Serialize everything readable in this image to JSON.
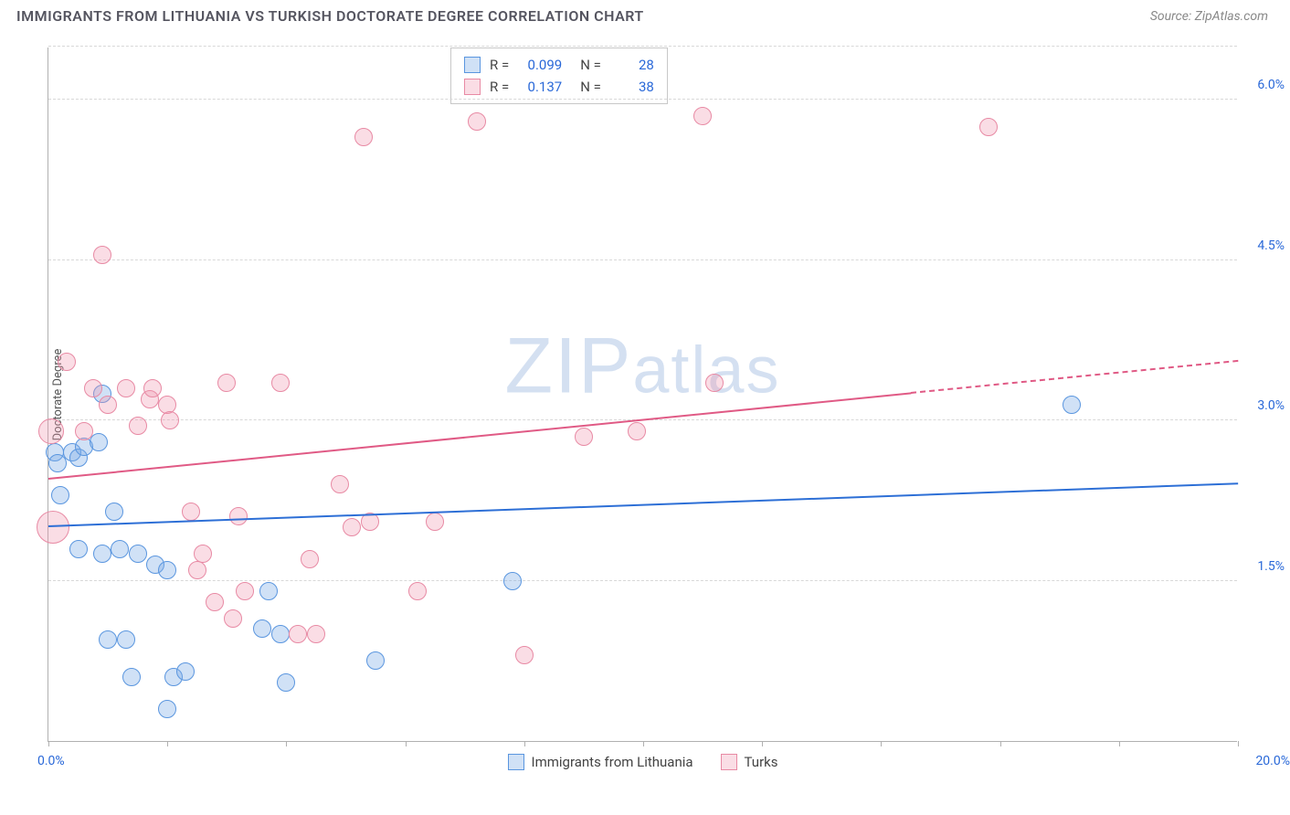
{
  "title": "IMMIGRANTS FROM LITHUANIA VS TURKISH DOCTORATE DEGREE CORRELATION CHART",
  "source": "Source: ZipAtlas.com",
  "watermark": "ZIPatlas",
  "chart": {
    "type": "scatter",
    "yaxis_title": "Doctorate Degree",
    "xlim": [
      0,
      20
    ],
    "ylim": [
      0,
      6.5
    ],
    "xtick_positions": [
      0,
      2,
      4,
      6,
      8,
      10,
      12,
      14,
      16,
      18,
      20
    ],
    "ytick_labels": [
      "1.5%",
      "3.0%",
      "4.5%",
      "6.0%"
    ],
    "ytick_values": [
      1.5,
      3.0,
      4.5,
      6.0
    ],
    "xlabel_min": "0.0%",
    "xlabel_max": "20.0%",
    "background_color": "#ffffff",
    "grid_color": "#d8d8d8",
    "axis_color": "#b0b0b0",
    "label_color": "#2968d8",
    "title_color": "#555560",
    "title_fontsize": 16,
    "label_fontsize": 14,
    "marker_radius": 10,
    "series": [
      {
        "name": "Immigrants from Lithuania",
        "stroke": "#5a96df",
        "fill": "rgba(120,170,230,0.35)",
        "trend_color": "#2d6fd6",
        "r": "0.099",
        "n": "28",
        "trend": {
          "x1": 0,
          "y1": 2.0,
          "x2": 20,
          "y2": 2.4
        },
        "points": [
          {
            "x": 0.1,
            "y": 2.7,
            "r": 10
          },
          {
            "x": 0.15,
            "y": 2.6,
            "r": 10
          },
          {
            "x": 0.2,
            "y": 2.3,
            "r": 10
          },
          {
            "x": 0.4,
            "y": 2.7,
            "r": 10
          },
          {
            "x": 0.5,
            "y": 2.65,
            "r": 10
          },
          {
            "x": 0.6,
            "y": 2.75,
            "r": 10
          },
          {
            "x": 0.85,
            "y": 2.8,
            "r": 10
          },
          {
            "x": 0.9,
            "y": 3.25,
            "r": 10
          },
          {
            "x": 1.1,
            "y": 2.15,
            "r": 10
          },
          {
            "x": 0.5,
            "y": 1.8,
            "r": 10
          },
          {
            "x": 0.9,
            "y": 1.75,
            "r": 10
          },
          {
            "x": 1.2,
            "y": 1.8,
            "r": 10
          },
          {
            "x": 1.5,
            "y": 1.75,
            "r": 10
          },
          {
            "x": 1.8,
            "y": 1.65,
            "r": 10
          },
          {
            "x": 1.3,
            "y": 0.95,
            "r": 10
          },
          {
            "x": 1.4,
            "y": 0.6,
            "r": 10
          },
          {
            "x": 2.0,
            "y": 1.6,
            "r": 10
          },
          {
            "x": 2.1,
            "y": 0.6,
            "r": 10
          },
          {
            "x": 2.3,
            "y": 0.65,
            "r": 10
          },
          {
            "x": 2.0,
            "y": 0.3,
            "r": 10
          },
          {
            "x": 3.7,
            "y": 1.4,
            "r": 10
          },
          {
            "x": 3.6,
            "y": 1.05,
            "r": 10
          },
          {
            "x": 3.9,
            "y": 1.0,
            "r": 10
          },
          {
            "x": 4.0,
            "y": 0.55,
            "r": 10
          },
          {
            "x": 5.5,
            "y": 0.75,
            "r": 10
          },
          {
            "x": 7.8,
            "y": 1.5,
            "r": 10
          },
          {
            "x": 17.2,
            "y": 3.15,
            "r": 10
          },
          {
            "x": 1.0,
            "y": 0.95,
            "r": 10
          }
        ]
      },
      {
        "name": "Turks",
        "stroke": "#e88aa4",
        "fill": "rgba(240,150,175,0.32)",
        "trend_color": "#e05a85",
        "r": "0.137",
        "n": "38",
        "trend": {
          "x1": 0,
          "y1": 2.45,
          "x2": 14.5,
          "y2": 3.25
        },
        "trend_dash": {
          "x1": 14.5,
          "y1": 3.25,
          "x2": 20,
          "y2": 3.55
        },
        "points": [
          {
            "x": 0.05,
            "y": 2.9,
            "r": 14
          },
          {
            "x": 0.08,
            "y": 2.0,
            "r": 18
          },
          {
            "x": 0.3,
            "y": 3.55,
            "r": 10
          },
          {
            "x": 0.75,
            "y": 3.3,
            "r": 10
          },
          {
            "x": 0.9,
            "y": 4.55,
            "r": 10
          },
          {
            "x": 1.0,
            "y": 3.15,
            "r": 10
          },
          {
            "x": 1.3,
            "y": 3.3,
            "r": 10
          },
          {
            "x": 1.5,
            "y": 2.95,
            "r": 10
          },
          {
            "x": 1.7,
            "y": 3.2,
            "r": 10
          },
          {
            "x": 1.75,
            "y": 3.3,
            "r": 10
          },
          {
            "x": 2.0,
            "y": 3.15,
            "r": 10
          },
          {
            "x": 2.4,
            "y": 2.15,
            "r": 10
          },
          {
            "x": 2.5,
            "y": 1.6,
            "r": 10
          },
          {
            "x": 2.6,
            "y": 1.75,
            "r": 10
          },
          {
            "x": 2.8,
            "y": 1.3,
            "r": 10
          },
          {
            "x": 3.0,
            "y": 3.35,
            "r": 10
          },
          {
            "x": 3.1,
            "y": 1.15,
            "r": 10
          },
          {
            "x": 3.2,
            "y": 2.1,
            "r": 10
          },
          {
            "x": 3.3,
            "y": 1.4,
            "r": 10
          },
          {
            "x": 3.9,
            "y": 3.35,
            "r": 10
          },
          {
            "x": 4.2,
            "y": 1.0,
            "r": 10
          },
          {
            "x": 4.4,
            "y": 1.7,
            "r": 10
          },
          {
            "x": 4.5,
            "y": 1.0,
            "r": 10
          },
          {
            "x": 4.9,
            "y": 2.4,
            "r": 10
          },
          {
            "x": 5.1,
            "y": 2.0,
            "r": 10
          },
          {
            "x": 5.3,
            "y": 5.65,
            "r": 10
          },
          {
            "x": 5.4,
            "y": 2.05,
            "r": 10
          },
          {
            "x": 6.2,
            "y": 1.4,
            "r": 10
          },
          {
            "x": 6.5,
            "y": 2.05,
            "r": 10
          },
          {
            "x": 7.2,
            "y": 5.8,
            "r": 10
          },
          {
            "x": 8.0,
            "y": 0.8,
            "r": 10
          },
          {
            "x": 9.0,
            "y": 2.85,
            "r": 10
          },
          {
            "x": 9.9,
            "y": 2.9,
            "r": 10
          },
          {
            "x": 11.0,
            "y": 5.85,
            "r": 10
          },
          {
            "x": 11.2,
            "y": 3.35,
            "r": 10
          },
          {
            "x": 15.8,
            "y": 5.75,
            "r": 10
          },
          {
            "x": 2.05,
            "y": 3.0,
            "r": 10
          },
          {
            "x": 0.6,
            "y": 2.9,
            "r": 10
          }
        ]
      }
    ],
    "legend_labels": {
      "r": "R =",
      "n": "N ="
    }
  }
}
